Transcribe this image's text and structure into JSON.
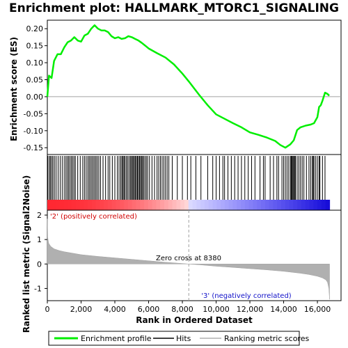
{
  "title": "Enrichment plot: HALLMARK_MTORC1_SIGNALING",
  "legend": {
    "enrichment_profile": "Enrichment profile",
    "hits": "Hits",
    "ranking_metric": "Ranking metric scores",
    "enrichment_color": "#00ee00",
    "hits_color": "#000000",
    "ranking_color": "#b0b0b0"
  },
  "annotations": {
    "zero_cross": "Zero cross at 8380",
    "positive": "'2' (positively correlated)",
    "negative": "'3' (negatively correlated)",
    "positive_color": "#d00000",
    "negative_color": "#1010c8"
  },
  "chart_data": [
    {
      "type": "line",
      "name": "enrichment-score",
      "ylabel": "Enrichment score (ES)",
      "xlim": [
        0,
        17400
      ],
      "ylim": [
        -0.17,
        0.225
      ],
      "yticks": [
        0.2,
        0.15,
        0.1,
        0.05,
        0.0,
        -0.05,
        -0.1,
        -0.15
      ],
      "ytick_labels": [
        "0.20",
        "0.15",
        "0.10",
        "0.05",
        "0.00",
        "-0.05",
        "-0.10",
        "-0.15"
      ],
      "grid": false,
      "x": [
        0,
        100,
        250,
        400,
        600,
        800,
        1000,
        1200,
        1400,
        1600,
        1800,
        2000,
        2200,
        2400,
        2600,
        2800,
        3000,
        3200,
        3400,
        3600,
        3800,
        4000,
        4200,
        4400,
        4600,
        4800,
        5000,
        5200,
        5400,
        5600,
        5800,
        6000,
        6500,
        7000,
        7500,
        8000,
        8380,
        9000,
        9500,
        10000,
        10500,
        11000,
        11500,
        12000,
        12500,
        13000,
        13500,
        13800,
        14100,
        14400,
        14600,
        14800,
        15000,
        15300,
        15600,
        15800,
        16000,
        16100,
        16200,
        16300,
        16450,
        16600,
        16700
      ],
      "y": [
        0.0,
        0.062,
        0.055,
        0.105,
        0.125,
        0.125,
        0.145,
        0.16,
        0.165,
        0.175,
        0.165,
        0.162,
        0.18,
        0.185,
        0.2,
        0.21,
        0.2,
        0.195,
        0.195,
        0.19,
        0.178,
        0.172,
        0.175,
        0.17,
        0.172,
        0.178,
        0.175,
        0.17,
        0.165,
        0.158,
        0.15,
        0.142,
        0.128,
        0.115,
        0.095,
        0.068,
        0.045,
        0.005,
        -0.025,
        -0.052,
        -0.065,
        -0.078,
        -0.09,
        -0.105,
        -0.112,
        -0.12,
        -0.13,
        -0.142,
        -0.15,
        -0.14,
        -0.128,
        -0.098,
        -0.09,
        -0.085,
        -0.082,
        -0.078,
        -0.06,
        -0.03,
        -0.025,
        -0.012,
        0.012,
        0.008,
        0.003
      ]
    },
    {
      "type": "scatter",
      "name": "hits",
      "x": [
        30,
        120,
        180,
        260,
        330,
        420,
        520,
        640,
        760,
        880,
        1000,
        1100,
        1180,
        1260,
        1340,
        1420,
        1500,
        1580,
        1660,
        1800,
        1950,
        2100,
        2200,
        2300,
        2400,
        2480,
        2560,
        2640,
        2720,
        2800,
        2880,
        2960,
        3050,
        3150,
        3300,
        3450,
        3600,
        3700,
        3850,
        4000,
        4150,
        4250,
        4350,
        4420,
        4480,
        4540,
        4600,
        4680,
        4760,
        4840,
        4920,
        4980,
        5040,
        5100,
        5160,
        5220,
        5280,
        5340,
        5400,
        5460,
        5520,
        5580,
        5640,
        5700,
        5780,
        5860,
        5940,
        6050,
        6200,
        6350,
        6500,
        6600,
        6700,
        6800,
        6900,
        7000,
        7100,
        7200,
        7400,
        7700,
        8000,
        8300,
        8500,
        8800,
        9100,
        9500,
        9800,
        10000,
        10200,
        10400,
        10500,
        10700,
        10900,
        11100,
        11300,
        11500,
        11700,
        11900,
        12100,
        12300,
        12600,
        12800,
        12900,
        13200,
        13400,
        13600,
        13700,
        13900,
        14000,
        14100,
        14200,
        14300,
        14400,
        14450,
        14500,
        14550,
        14600,
        14650,
        14700,
        14800,
        14900,
        15000,
        15100,
        15200,
        15350,
        15500,
        15600,
        15700,
        15750,
        15800,
        15900,
        16000,
        16100,
        16150,
        16300,
        16450
      ]
    },
    {
      "type": "area",
      "name": "ranked-metric",
      "xlabel": "Rank in Ordered Dataset",
      "ylabel": "Ranked list metric (Signal2Noise)",
      "xlim": [
        0,
        17400
      ],
      "ylim": [
        -1.5,
        2.2
      ],
      "yticks": [
        2,
        1,
        0,
        -1
      ],
      "ytick_labels": [
        "2",
        "1",
        "0",
        "-1"
      ],
      "xticks": [
        0,
        2000,
        4000,
        6000,
        8000,
        10000,
        12000,
        14000,
        16000
      ],
      "xtick_labels": [
        "0",
        "2,000",
        "4,000",
        "6,000",
        "8,000",
        "10,000",
        "12,000",
        "14,000",
        "16,000"
      ],
      "zero_cross": 8380,
      "x": [
        0,
        20,
        80,
        200,
        400,
        700,
        1000,
        1500,
        2000,
        3000,
        4000,
        5000,
        6000,
        7000,
        8000,
        8380,
        9000,
        10000,
        11000,
        12000,
        13000,
        14000,
        14500,
        15000,
        15500,
        16000,
        16300,
        16500,
        16600,
        16680,
        16720
      ],
      "y": [
        1.85,
        1.1,
        0.85,
        0.72,
        0.62,
        0.55,
        0.5,
        0.44,
        0.38,
        0.31,
        0.25,
        0.19,
        0.13,
        0.07,
        0.02,
        0.0,
        -0.03,
        -0.09,
        -0.14,
        -0.19,
        -0.24,
        -0.3,
        -0.34,
        -0.38,
        -0.43,
        -0.5,
        -0.57,
        -0.65,
        -0.75,
        -1.0,
        -1.45
      ]
    }
  ]
}
